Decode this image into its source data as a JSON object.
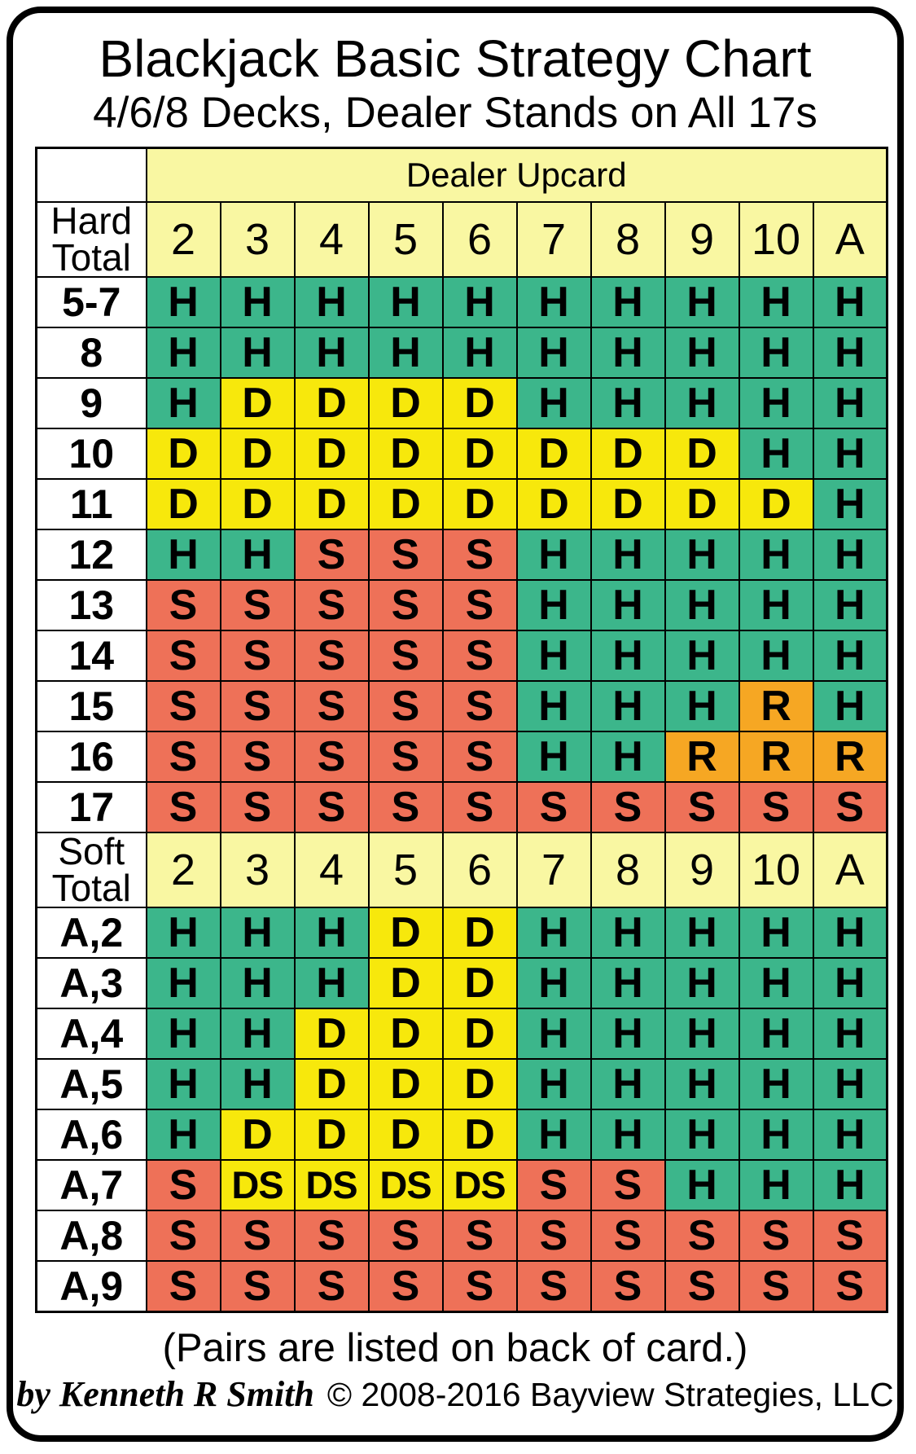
{
  "chart_data": {
    "type": "table",
    "title": "Blackjack Basic Strategy Chart",
    "subtitle": "4/6/8 Decks, Dealer Stands on All 17s",
    "column_group_label": "Dealer Upcard",
    "columns": [
      "2",
      "3",
      "4",
      "5",
      "6",
      "7",
      "8",
      "9",
      "10",
      "A"
    ],
    "sections": [
      {
        "label": "Hard Total",
        "rows": [
          {
            "label": "5-7",
            "actions": [
              "H",
              "H",
              "H",
              "H",
              "H",
              "H",
              "H",
              "H",
              "H",
              "H"
            ]
          },
          {
            "label": "8",
            "actions": [
              "H",
              "H",
              "H",
              "H",
              "H",
              "H",
              "H",
              "H",
              "H",
              "H"
            ]
          },
          {
            "label": "9",
            "actions": [
              "H",
              "D",
              "D",
              "D",
              "D",
              "H",
              "H",
              "H",
              "H",
              "H"
            ]
          },
          {
            "label": "10",
            "actions": [
              "D",
              "D",
              "D",
              "D",
              "D",
              "D",
              "D",
              "D",
              "H",
              "H"
            ]
          },
          {
            "label": "11",
            "actions": [
              "D",
              "D",
              "D",
              "D",
              "D",
              "D",
              "D",
              "D",
              "D",
              "H"
            ]
          },
          {
            "label": "12",
            "actions": [
              "H",
              "H",
              "S",
              "S",
              "S",
              "H",
              "H",
              "H",
              "H",
              "H"
            ]
          },
          {
            "label": "13",
            "actions": [
              "S",
              "S",
              "S",
              "S",
              "S",
              "H",
              "H",
              "H",
              "H",
              "H"
            ]
          },
          {
            "label": "14",
            "actions": [
              "S",
              "S",
              "S",
              "S",
              "S",
              "H",
              "H",
              "H",
              "H",
              "H"
            ]
          },
          {
            "label": "15",
            "actions": [
              "S",
              "S",
              "S",
              "S",
              "S",
              "H",
              "H",
              "H",
              "R",
              "H"
            ]
          },
          {
            "label": "16",
            "actions": [
              "S",
              "S",
              "S",
              "S",
              "S",
              "H",
              "H",
              "R",
              "R",
              "R"
            ]
          },
          {
            "label": "17",
            "actions": [
              "S",
              "S",
              "S",
              "S",
              "S",
              "S",
              "S",
              "S",
              "S",
              "S"
            ]
          }
        ]
      },
      {
        "label": "Soft Total",
        "rows": [
          {
            "label": "A,2",
            "actions": [
              "H",
              "H",
              "H",
              "D",
              "D",
              "H",
              "H",
              "H",
              "H",
              "H"
            ]
          },
          {
            "label": "A,3",
            "actions": [
              "H",
              "H",
              "H",
              "D",
              "D",
              "H",
              "H",
              "H",
              "H",
              "H"
            ]
          },
          {
            "label": "A,4",
            "actions": [
              "H",
              "H",
              "D",
              "D",
              "D",
              "H",
              "H",
              "H",
              "H",
              "H"
            ]
          },
          {
            "label": "A,5",
            "actions": [
              "H",
              "H",
              "D",
              "D",
              "D",
              "H",
              "H",
              "H",
              "H",
              "H"
            ]
          },
          {
            "label": "A,6",
            "actions": [
              "H",
              "D",
              "D",
              "D",
              "D",
              "H",
              "H",
              "H",
              "H",
              "H"
            ]
          },
          {
            "label": "A,7",
            "actions": [
              "S",
              "DS",
              "DS",
              "DS",
              "DS",
              "S",
              "S",
              "H",
              "H",
              "H"
            ]
          },
          {
            "label": "A,8",
            "actions": [
              "S",
              "S",
              "S",
              "S",
              "S",
              "S",
              "S",
              "S",
              "S",
              "S"
            ]
          },
          {
            "label": "A,9",
            "actions": [
              "S",
              "S",
              "S",
              "S",
              "S",
              "S",
              "S",
              "S",
              "S",
              "S"
            ]
          }
        ]
      }
    ]
  },
  "colors": {
    "header_bg": "#F9F7A2",
    "table_border": "#000000",
    "text": "#000000",
    "card_border": "#000000"
  },
  "action_colors": {
    "H": "#3CB68B",
    "D": "#F7E80C",
    "DS": "#F7E80C",
    "S": "#EE7158",
    "R": "#F6A723"
  },
  "footer": {
    "note": "(Pairs are listed on back of card.)",
    "author": "by Kenneth R Smith",
    "copyright": "© 2008-2016 Bayview Strategies, LLC"
  }
}
